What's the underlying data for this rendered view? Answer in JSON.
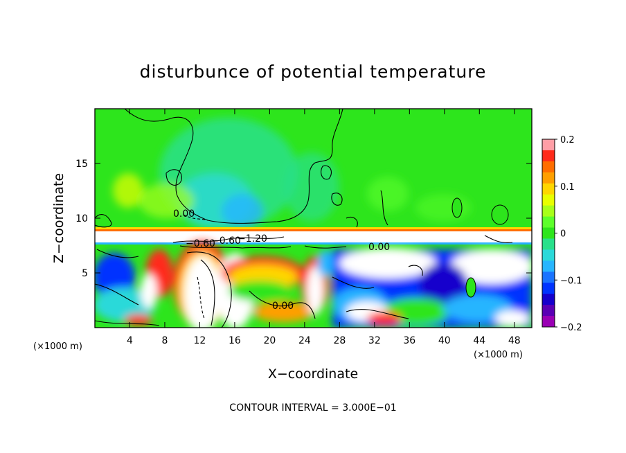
{
  "chart_data": {
    "type": "heatmap",
    "title": "disturbunce of potential temperature",
    "xlabel": "X−coordinate",
    "ylabel": "Z−coordinate",
    "x_units": "(×1000 m)",
    "x_units_left": "(×1000 m)",
    "xlim": [
      0,
      50
    ],
    "ylim": [
      0,
      20
    ],
    "x_ticks": [
      4,
      8,
      12,
      16,
      20,
      24,
      28,
      32,
      36,
      40,
      44,
      48
    ],
    "y_ticks": [
      5,
      10,
      15
    ],
    "colorbar": {
      "min": -0.2,
      "max": 0.2,
      "ticks": [
        0.2,
        0.1,
        0,
        -0.1,
        -0.2
      ],
      "tick_labels": [
        "0.2",
        "0.1",
        "0",
        "−0.1",
        "−0.2"
      ],
      "colors": [
        "#ff9ea6",
        "#ff2a1a",
        "#ff6d00",
        "#ff9f00",
        "#ffd600",
        "#e8ff00",
        "#a8ff1a",
        "#5dff2b",
        "#2de51c",
        "#28e08a",
        "#2bd9d9",
        "#27b5ff",
        "#1a73ff",
        "#0033ff",
        "#1500cc",
        "#5a00b4",
        "#9a00b4"
      ]
    },
    "contour_labels": [
      {
        "text": "0.00",
        "x": 8.9,
        "z": 10.1
      },
      {
        "text": "−0.60",
        "x": 12.6,
        "z": 7.8
      },
      {
        "text": "−0.60",
        "x": 16.5,
        "z": 8.1
      },
      {
        "text": "−1.20",
        "x": 19.7,
        "z": 8.3
      },
      {
        "text": "0.00",
        "x": 31.7,
        "z": 7.4
      },
      {
        "text": "0.00",
        "x": 21.8,
        "z": 1.9
      }
    ],
    "contour_interval": "CONTOUR INTERVAL = 3.000E−01"
  },
  "colors": {
    "background_green": "#2de51c",
    "upper_cyan": "#28e08a",
    "dark_blue": "#0033ff"
  }
}
